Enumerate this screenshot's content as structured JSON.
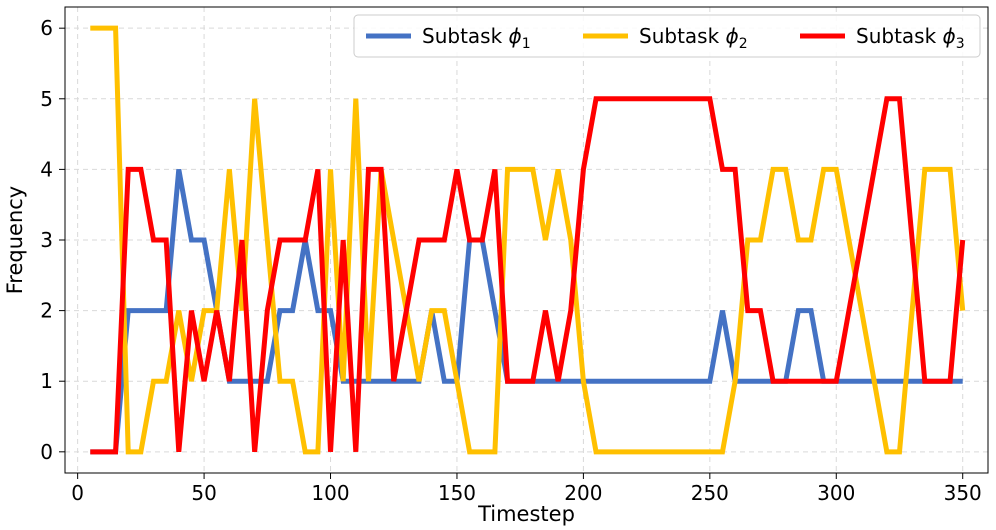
{
  "chart_data": {
    "type": "line",
    "xlabel": "Timestep",
    "ylabel": "Frequency",
    "xlim": [
      -5,
      360
    ],
    "ylim": [
      -0.3,
      6.3
    ],
    "xticks": [
      0,
      50,
      100,
      150,
      200,
      250,
      300,
      350
    ],
    "yticks": [
      0,
      1,
      2,
      3,
      4,
      5,
      6
    ],
    "grid": true,
    "legend_position": "top-right",
    "x": [
      5,
      10,
      15,
      20,
      25,
      30,
      35,
      40,
      45,
      50,
      55,
      60,
      65,
      70,
      75,
      80,
      85,
      90,
      95,
      100,
      105,
      110,
      115,
      120,
      125,
      130,
      135,
      140,
      145,
      150,
      155,
      160,
      165,
      170,
      175,
      180,
      185,
      190,
      195,
      200,
      205,
      210,
      215,
      220,
      225,
      230,
      235,
      240,
      245,
      250,
      255,
      260,
      265,
      270,
      275,
      280,
      285,
      290,
      295,
      300,
      305,
      310,
      315,
      320,
      325,
      330,
      335,
      340,
      345,
      350
    ],
    "series": [
      {
        "name_prefix": "Subtask ",
        "name_symbol": "ϕ",
        "name_subscript": "1",
        "color": "#4472c4",
        "values": [
          0,
          0,
          0,
          2,
          2,
          2,
          2,
          4,
          3,
          3,
          2,
          1,
          1,
          1,
          1,
          2,
          2,
          3,
          2,
          2,
          1,
          1,
          1,
          1,
          1,
          1,
          1,
          2,
          1,
          1,
          3,
          3,
          2,
          1,
          1,
          1,
          1,
          1,
          1,
          1,
          1,
          1,
          1,
          1,
          1,
          1,
          1,
          1,
          1,
          1,
          2,
          1,
          1,
          1,
          1,
          1,
          2,
          2,
          1,
          1,
          1,
          1,
          1,
          1,
          1,
          1,
          1,
          1,
          1,
          1
        ]
      },
      {
        "name_prefix": "Subtask ",
        "name_symbol": "ϕ",
        "name_subscript": "2",
        "color": "#ffc000",
        "values": [
          6,
          6,
          6,
          0,
          0,
          1,
          1,
          2,
          1,
          2,
          2,
          4,
          2,
          5,
          3,
          1,
          1,
          0,
          0,
          4,
          1,
          5,
          1,
          4,
          3,
          2,
          1,
          2,
          2,
          1,
          0,
          0,
          0,
          4,
          4,
          4,
          3,
          4,
          3,
          1,
          0,
          0,
          0,
          0,
          0,
          0,
          0,
          0,
          0,
          0,
          0,
          1,
          3,
          3,
          4,
          4,
          3,
          3,
          4,
          4,
          3,
          2,
          1,
          0,
          0,
          2,
          4,
          4,
          4,
          2
        ]
      },
      {
        "name_prefix": "Subtask ",
        "name_symbol": "ϕ",
        "name_subscript": "3",
        "color": "#ff0000",
        "values": [
          0,
          0,
          0,
          4,
          4,
          3,
          3,
          0,
          2,
          1,
          2,
          1,
          3,
          0,
          2,
          3,
          3,
          3,
          4,
          0,
          3,
          0,
          4,
          4,
          1,
          2,
          3,
          3,
          3,
          4,
          3,
          3,
          4,
          1,
          1,
          1,
          2,
          1,
          2,
          4,
          5,
          5,
          5,
          5,
          5,
          5,
          5,
          5,
          5,
          5,
          4,
          4,
          2,
          2,
          1,
          1,
          1,
          1,
          1,
          1,
          2,
          3,
          4,
          5,
          5,
          3,
          1,
          1,
          1,
          3
        ]
      }
    ]
  }
}
